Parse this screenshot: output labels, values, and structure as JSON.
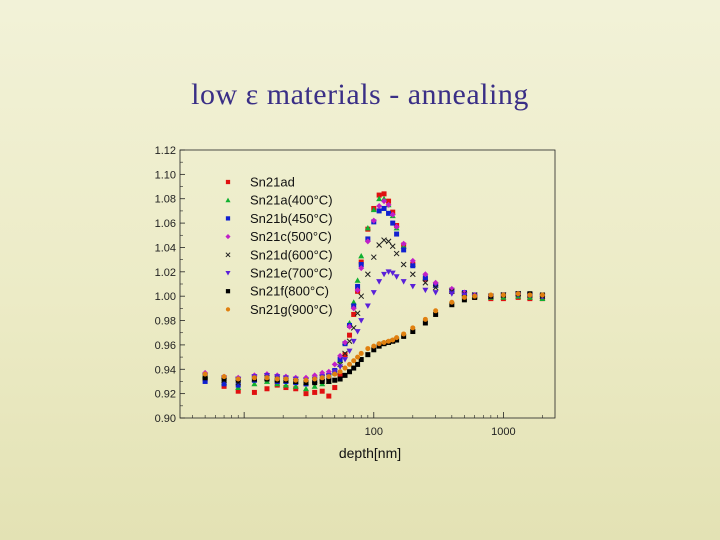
{
  "slide": {
    "title": "low ε materials - annealing"
  },
  "chart_data": {
    "type": "scatter",
    "title": "low ε materials - annealing",
    "xlabel": "depth[nm]",
    "ylabel": "",
    "xscale": "log",
    "xlim": [
      3.2,
      2500
    ],
    "ylim": [
      0.9,
      1.12
    ],
    "x_ticks": [
      100,
      1000
    ],
    "x_tick_labels": [
      "100",
      "1000"
    ],
    "y_ticks": [
      0.9,
      0.92,
      0.94,
      0.96,
      0.98,
      1.0,
      1.02,
      1.04,
      1.06,
      1.08,
      1.1,
      1.12
    ],
    "y_tick_labels": [
      "0.90",
      "0.92",
      "0.94",
      "0.96",
      "0.98",
      "1.00",
      "1.02",
      "1.04",
      "1.06",
      "1.08",
      "1.10",
      "1.12"
    ],
    "legend_position": "top-left",
    "x": [
      5,
      7,
      9,
      12,
      15,
      18,
      21,
      25,
      30,
      35,
      40,
      45,
      50,
      55,
      60,
      65,
      70,
      75,
      80,
      90,
      100,
      110,
      120,
      130,
      140,
      150,
      170,
      200,
      250,
      300,
      400,
      500,
      600,
      800,
      1000,
      1300,
      1600,
      2000
    ],
    "series": [
      {
        "name": "Sn21ad",
        "marker": "square",
        "color": "#e01010",
        "size": 2.5,
        "values": [
          0.932,
          0.926,
          0.922,
          0.921,
          0.924,
          0.927,
          0.925,
          0.924,
          0.92,
          0.921,
          0.922,
          0.918,
          0.925,
          0.935,
          0.952,
          0.968,
          0.985,
          1.004,
          1.028,
          1.055,
          1.072,
          1.083,
          1.084,
          1.078,
          1.069,
          1.058,
          1.042,
          1.026,
          1.014,
          1.009,
          1.004,
          1.001,
          0.999,
          0.998,
          0.998,
          0.999,
          0.998,
          0.998
        ]
      },
      {
        "name": "Sn21a(400°C)",
        "marker": "triangle-up",
        "color": "#10b030",
        "size": 3,
        "values": [
          0.935,
          0.929,
          0.925,
          0.928,
          0.93,
          0.928,
          0.927,
          0.926,
          0.924,
          0.926,
          0.928,
          0.93,
          0.937,
          0.947,
          0.962,
          0.978,
          0.995,
          1.013,
          1.033,
          1.056,
          1.071,
          1.08,
          1.08,
          1.075,
          1.066,
          1.056,
          1.041,
          1.026,
          1.015,
          1.009,
          1.005,
          1.002,
          1.0,
          0.999,
          0.999,
          1.0,
          0.999,
          0.998
        ]
      },
      {
        "name": "Sn21b(450°C)",
        "marker": "square",
        "color": "#1020d0",
        "size": 2.5,
        "values": [
          0.93,
          0.928,
          0.927,
          0.931,
          0.932,
          0.93,
          0.93,
          0.929,
          0.928,
          0.93,
          0.932,
          0.933,
          0.939,
          0.948,
          0.961,
          0.976,
          0.992,
          1.008,
          1.026,
          1.047,
          1.061,
          1.07,
          1.072,
          1.068,
          1.06,
          1.051,
          1.038,
          1.025,
          1.015,
          1.009,
          1.005,
          1.003,
          1.001,
          1.0,
          1.001,
          1.002,
          1.001,
          1.0
        ]
      },
      {
        "name": "Sn21c(500°C)",
        "marker": "diamond",
        "color": "#c020c8",
        "size": 3,
        "values": [
          0.937,
          0.934,
          0.933,
          0.935,
          0.936,
          0.935,
          0.934,
          0.933,
          0.933,
          0.935,
          0.937,
          0.938,
          0.944,
          0.951,
          0.962,
          0.975,
          0.99,
          1.005,
          1.023,
          1.045,
          1.062,
          1.074,
          1.078,
          1.075,
          1.067,
          1.057,
          1.043,
          1.029,
          1.018,
          1.011,
          1.006,
          1.003,
          1.001,
          1.0,
          1.001,
          1.002,
          1.001,
          1.0
        ]
      },
      {
        "name": "Sn21d(600°C)",
        "marker": "cross",
        "color": "#202020",
        "size": 2.5,
        "values": [
          0.934,
          0.931,
          0.929,
          0.932,
          0.933,
          0.932,
          0.931,
          0.93,
          0.929,
          0.931,
          0.933,
          0.934,
          0.938,
          0.944,
          0.953,
          0.963,
          0.974,
          0.986,
          1.0,
          1.018,
          1.032,
          1.042,
          1.046,
          1.045,
          1.041,
          1.035,
          1.026,
          1.018,
          1.011,
          1.007,
          1.004,
          1.002,
          1.001,
          1.0,
          1.001,
          1.002,
          1.001,
          1.0
        ]
      },
      {
        "name": "Sn21e(700°C)",
        "marker": "triangle-down",
        "color": "#5a20d8",
        "size": 3,
        "values": [
          0.935,
          0.933,
          0.932,
          0.934,
          0.935,
          0.934,
          0.933,
          0.932,
          0.931,
          0.932,
          0.934,
          0.935,
          0.938,
          0.942,
          0.948,
          0.955,
          0.963,
          0.971,
          0.98,
          0.992,
          1.003,
          1.012,
          1.018,
          1.02,
          1.019,
          1.016,
          1.012,
          1.008,
          1.005,
          1.003,
          1.002,
          1.001,
          1.0,
          1.0,
          1.001,
          1.001,
          1.001,
          1.0
        ]
      },
      {
        "name": "Sn21f(800°C)",
        "marker": "square",
        "color": "#000000",
        "size": 2.5,
        "values": [
          0.933,
          0.932,
          0.931,
          0.932,
          0.932,
          0.931,
          0.931,
          0.93,
          0.929,
          0.929,
          0.93,
          0.93,
          0.931,
          0.932,
          0.935,
          0.938,
          0.941,
          0.944,
          0.948,
          0.952,
          0.956,
          0.959,
          0.961,
          0.962,
          0.963,
          0.964,
          0.967,
          0.971,
          0.978,
          0.985,
          0.993,
          0.997,
          0.999,
          1.0,
          1.001,
          1.002,
          1.002,
          1.001
        ]
      },
      {
        "name": "Sn21g(900°C)",
        "marker": "circle",
        "color": "#e08010",
        "size": 2.5,
        "values": [
          0.936,
          0.934,
          0.932,
          0.933,
          0.933,
          0.932,
          0.932,
          0.931,
          0.931,
          0.932,
          0.933,
          0.934,
          0.936,
          0.938,
          0.941,
          0.944,
          0.947,
          0.95,
          0.953,
          0.957,
          0.959,
          0.961,
          0.962,
          0.963,
          0.964,
          0.966,
          0.969,
          0.974,
          0.981,
          0.988,
          0.995,
          0.999,
          1.0,
          1.001,
          1.001,
          1.002,
          1.001,
          1.001
        ]
      }
    ]
  }
}
